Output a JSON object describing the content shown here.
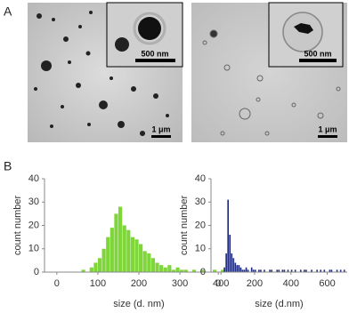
{
  "panel_a": {
    "label": "A",
    "images": [
      {
        "scale_bar": "1 μm",
        "inset_scale_bar": "500 nm"
      },
      {
        "scale_bar": "1 μm",
        "inset_scale_bar": "500 nm"
      }
    ]
  },
  "panel_b": {
    "label": "B"
  },
  "chart_data": [
    {
      "type": "histogram",
      "xlabel": "size (d. nm)",
      "ylabel": "count number",
      "color": "#7fd63a",
      "bins": [
        60,
        70,
        80,
        90,
        100,
        110,
        120,
        130,
        140,
        150,
        160,
        170,
        180,
        190,
        200,
        210,
        220,
        230,
        240,
        250,
        260,
        270,
        280,
        290,
        300,
        310,
        320,
        330,
        340,
        350,
        360,
        370,
        380,
        390,
        400,
        410,
        420
      ],
      "counts": [
        1,
        0,
        2,
        4,
        6,
        10,
        15,
        19,
        25,
        28,
        20,
        18,
        15,
        14,
        12,
        9,
        8,
        6,
        4,
        3,
        2,
        3,
        1,
        2,
        1,
        1,
        0,
        1,
        0,
        1,
        0,
        0,
        1,
        0,
        1,
        0
      ],
      "xlim": [
        -30,
        430
      ],
      "ylim": [
        0,
        40
      ],
      "xticks": [
        0,
        100,
        200,
        300,
        400
      ],
      "yticks": [
        0,
        10,
        20,
        30,
        40
      ]
    },
    {
      "type": "histogram",
      "xlabel": "size (d.nm)",
      "ylabel": "count number",
      "color": "#1f2a7a",
      "bins": [
        20,
        30,
        40,
        50,
        60,
        70,
        80,
        90,
        100,
        110,
        120,
        130,
        140,
        150,
        160,
        170,
        180,
        190,
        200,
        210,
        220,
        230,
        240,
        250,
        260,
        270,
        280,
        290,
        300,
        310,
        320,
        330,
        340,
        350,
        360,
        370,
        380,
        390,
        400,
        410,
        420,
        430,
        440,
        450,
        460,
        470,
        480,
        490,
        500,
        510,
        520,
        530,
        540,
        550,
        560,
        570,
        580,
        590,
        600,
        610,
        620,
        630,
        640,
        650,
        660,
        670,
        680,
        690,
        700
      ],
      "counts": [
        0,
        2,
        8,
        31,
        16,
        8,
        6,
        4,
        3,
        3,
        2,
        1,
        1,
        2,
        1,
        0,
        2,
        1,
        1,
        0,
        1,
        1,
        0,
        1,
        0,
        0,
        1,
        1,
        0,
        0,
        1,
        1,
        0,
        1,
        1,
        0,
        1,
        0,
        1,
        0,
        1,
        0,
        0,
        1,
        0,
        1,
        1,
        0,
        0,
        1,
        0,
        0,
        1,
        0,
        1,
        0,
        1,
        0,
        0,
        1,
        1,
        0,
        0,
        1,
        0,
        1,
        0,
        1
      ],
      "xlim": [
        -40,
        710
      ],
      "ylim": [
        0,
        40
      ],
      "xticks": [
        0,
        200,
        400,
        600
      ],
      "yticks": [
        0,
        10,
        20,
        30,
        40
      ]
    }
  ]
}
